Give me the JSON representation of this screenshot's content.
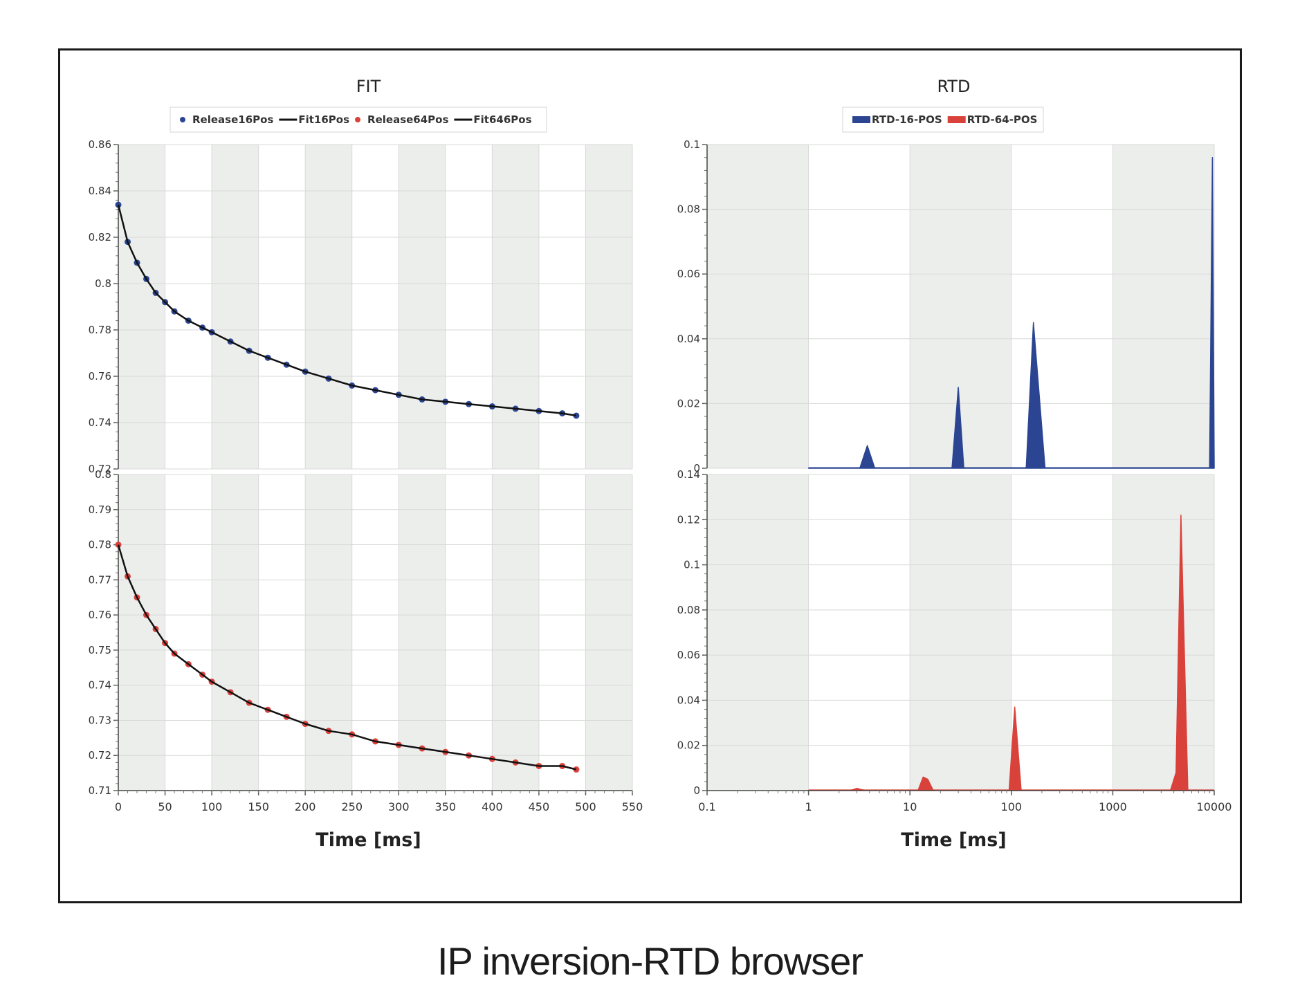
{
  "caption": "IP inversion-RTD browser",
  "colors": {
    "blue": "#2b4592",
    "red": "#d9423b",
    "fit": "#111111",
    "band": "#eceeec",
    "grid": "#d8d8d8"
  },
  "chart_data": [
    {
      "id": "fit",
      "type": "scatter",
      "title": "FIT",
      "xlabel": "Time [ms]",
      "xlim": [
        0,
        550
      ],
      "xticks": [
        "0",
        "50",
        "100",
        "150",
        "200",
        "250",
        "300",
        "350",
        "400",
        "450",
        "500",
        "550"
      ],
      "legend": [
        "Release16Pos",
        "Fit16Pos",
        "Release64Pos",
        "Fit646Pos"
      ],
      "legend_position": "top-center",
      "panels": [
        {
          "id": "top",
          "ylim": [
            0.72,
            0.86
          ],
          "yticks": [
            "0.72",
            "0.74",
            "0.76",
            "0.78",
            "0.8",
            "0.82",
            "0.84",
            "0.86"
          ],
          "series": [
            {
              "name": "Release16Pos",
              "kind": "points",
              "color": "blue",
              "x": [
                0,
                10,
                20,
                30,
                40,
                50,
                60,
                75,
                90,
                100,
                120,
                140,
                160,
                180,
                200,
                225,
                250,
                275,
                300,
                325,
                350,
                375,
                400,
                425,
                450,
                475,
                490
              ],
              "y": [
                0.834,
                0.818,
                0.809,
                0.802,
                0.796,
                0.792,
                0.788,
                0.784,
                0.781,
                0.779,
                0.775,
                0.771,
                0.768,
                0.765,
                0.762,
                0.759,
                0.756,
                0.754,
                0.752,
                0.75,
                0.749,
                0.748,
                0.747,
                0.746,
                0.745,
                0.744,
                0.743
              ]
            },
            {
              "name": "Fit16Pos",
              "kind": "line",
              "color": "fit",
              "x": [
                0,
                10,
                20,
                30,
                40,
                50,
                60,
                75,
                90,
                100,
                120,
                140,
                160,
                180,
                200,
                225,
                250,
                275,
                300,
                325,
                350,
                375,
                400,
                425,
                450,
                475,
                490
              ],
              "y": [
                0.834,
                0.818,
                0.809,
                0.802,
                0.796,
                0.792,
                0.788,
                0.784,
                0.781,
                0.779,
                0.775,
                0.771,
                0.768,
                0.765,
                0.762,
                0.759,
                0.756,
                0.754,
                0.752,
                0.75,
                0.749,
                0.748,
                0.747,
                0.746,
                0.745,
                0.744,
                0.743
              ]
            }
          ]
        },
        {
          "id": "bottom",
          "ylim": [
            0.71,
            0.8
          ],
          "yticks": [
            "0.71",
            "0.72",
            "0.73",
            "0.74",
            "0.75",
            "0.76",
            "0.77",
            "0.78",
            "0.79",
            "0.8"
          ],
          "series": [
            {
              "name": "Release64Pos",
              "kind": "points",
              "color": "red",
              "x": [
                0,
                10,
                20,
                30,
                40,
                50,
                60,
                75,
                90,
                100,
                120,
                140,
                160,
                180,
                200,
                225,
                250,
                275,
                300,
                325,
                350,
                375,
                400,
                425,
                450,
                475,
                490
              ],
              "y": [
                0.78,
                0.771,
                0.765,
                0.76,
                0.756,
                0.752,
                0.749,
                0.746,
                0.743,
                0.741,
                0.738,
                0.735,
                0.733,
                0.731,
                0.729,
                0.727,
                0.726,
                0.724,
                0.723,
                0.722,
                0.721,
                0.72,
                0.719,
                0.718,
                0.717,
                0.717,
                0.716
              ]
            },
            {
              "name": "Fit646Pos",
              "kind": "line",
              "color": "fit",
              "x": [
                0,
                10,
                20,
                30,
                40,
                50,
                60,
                75,
                90,
                100,
                120,
                140,
                160,
                180,
                200,
                225,
                250,
                275,
                300,
                325,
                350,
                375,
                400,
                425,
                450,
                475,
                490
              ],
              "y": [
                0.78,
                0.771,
                0.765,
                0.76,
                0.756,
                0.752,
                0.749,
                0.746,
                0.743,
                0.741,
                0.738,
                0.735,
                0.733,
                0.731,
                0.729,
                0.727,
                0.726,
                0.724,
                0.723,
                0.722,
                0.721,
                0.72,
                0.719,
                0.718,
                0.717,
                0.717,
                0.716
              ]
            }
          ]
        }
      ]
    },
    {
      "id": "rtd",
      "type": "area",
      "title": "RTD",
      "xlabel": "Time [ms]",
      "xscale": "log",
      "xlim": [
        0.1,
        10000
      ],
      "xticks": [
        "0.1",
        "1",
        "10",
        "100",
        "1000",
        "10000"
      ],
      "legend": [
        "RTD-16-POS",
        "RTD-64-POS"
      ],
      "legend_position": "top-center",
      "panels": [
        {
          "id": "top",
          "ylim": [
            0,
            0.1
          ],
          "yticks": [
            "0",
            "0.02",
            "0.04",
            "0.06",
            "0.08",
            "0.1"
          ],
          "series": [
            {
              "name": "RTD-16-POS",
              "color": "blue",
              "x": [
                1,
                3.2,
                3.8,
                4.5,
                26,
                30,
                34,
                140,
                165,
                215,
                9000,
                9600,
                10000
              ],
              "y": [
                0,
                0,
                0.007,
                0,
                0,
                0.025,
                0,
                0,
                0.045,
                0,
                0,
                0.096,
                0
              ]
            }
          ]
        },
        {
          "id": "bottom",
          "ylim": [
            0,
            0.14
          ],
          "yticks": [
            "0",
            "0.02",
            "0.04",
            "0.06",
            "0.08",
            "0.1",
            "0.12",
            "0.14"
          ],
          "series": [
            {
              "name": "RTD-64-POS",
              "color": "red",
              "x": [
                1,
                2.6,
                3.0,
                3.6,
                12,
                13.5,
                15,
                17,
                95,
                108,
                125,
                3700,
                4200,
                4700,
                5500,
                10000
              ],
              "y": [
                0,
                0,
                0.001,
                0,
                0,
                0.006,
                0.005,
                0,
                0,
                0.037,
                0,
                0,
                0.008,
                0.122,
                0,
                0
              ]
            }
          ]
        }
      ]
    }
  ]
}
